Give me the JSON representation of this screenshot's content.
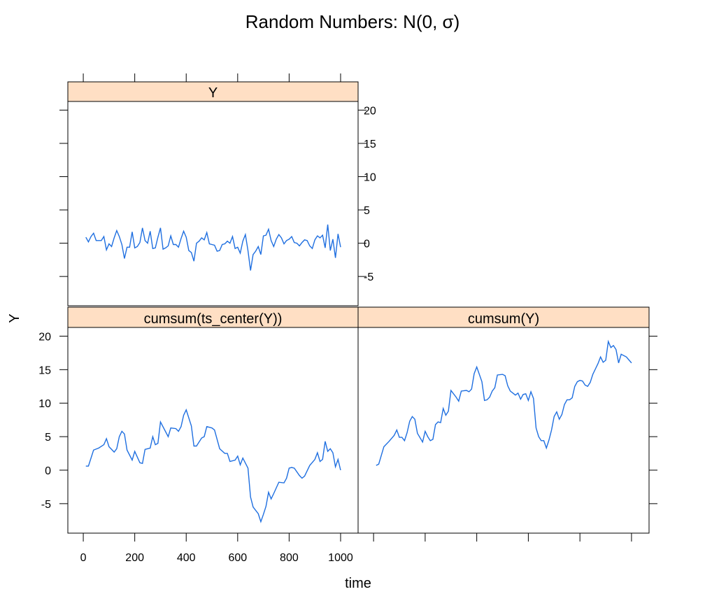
{
  "title": "Random Numbers: N(0, σ)",
  "xlabel": "time",
  "ylabel": "Y",
  "chart_data": [
    {
      "type": "line",
      "strip": "Y",
      "color": "#1f6fe0",
      "strip_color": "#ffdfc4",
      "xlim": [
        -60,
        1068
      ],
      "ylim": [
        -9.4,
        21.3
      ],
      "xticks": [
        0,
        200,
        400,
        600,
        800,
        1000
      ],
      "yticks": [
        -5,
        0,
        5,
        10,
        15,
        20
      ],
      "x": [
        10,
        20,
        30,
        40,
        50,
        60,
        70,
        80,
        90,
        100,
        110,
        120,
        130,
        140,
        150,
        160,
        170,
        180,
        190,
        200,
        210,
        220,
        230,
        240,
        250,
        260,
        270,
        280,
        290,
        300,
        310,
        320,
        330,
        340,
        350,
        360,
        370,
        380,
        390,
        400,
        410,
        420,
        430,
        440,
        450,
        460,
        470,
        480,
        490,
        500,
        510,
        520,
        530,
        540,
        550,
        560,
        570,
        580,
        590,
        600,
        610,
        620,
        630,
        640,
        650,
        660,
        670,
        680,
        690,
        700,
        710,
        720,
        730,
        740,
        750,
        760,
        770,
        780,
        790,
        800,
        810,
        820,
        830,
        840,
        850,
        860,
        870,
        880,
        890,
        900,
        910,
        920,
        930,
        940,
        950,
        960,
        970,
        980,
        990,
        1000
      ],
      "values": [
        0.9,
        0.2,
        1,
        1.5,
        0.4,
        0.4,
        0.4,
        1,
        -1,
        -0.1,
        -0.5,
        0.8,
        1.9,
        1,
        -0.2,
        -2.3,
        -0.6,
        -0.6,
        1.7,
        -0.7,
        -0.5,
        0.1,
        2.3,
        0.4,
        0,
        1.8,
        -0.8,
        -0.7,
        0.9,
        2.3,
        -0.9,
        -0.7,
        -0.4,
        1.1,
        -0.2,
        -0.2,
        -0.6,
        0.7,
        1.8,
        0.9,
        -1.1,
        -1.4,
        -2.7,
        0,
        0.3,
        0.8,
        0.5,
        1.6,
        -0.1,
        -0.2,
        -0.3,
        -1.2,
        -1.1,
        -0.2,
        -0.1,
        0.3,
        0,
        1,
        -0.8,
        -0.6,
        -1.5,
        0.3,
        1.3,
        -1.1,
        -4.1,
        -1.7,
        -1.2,
        -0.5,
        -1.7,
        1.1,
        1.2,
        2.1,
        0.4,
        -0.5,
        0.6,
        1.3,
        0.8,
        -0.1,
        0.4,
        0.6,
        1,
        0.1,
        0,
        -0.4,
        0.1,
        0.5,
        0.4,
        -0.4,
        -0.8,
        0.5,
        1.1,
        0.8,
        1.2,
        -0.7,
        2.8,
        -1.1,
        0.6,
        -2.2,
        1.4,
        -0.6
      ]
    },
    {
      "type": "line",
      "strip": "cumsum(ts_center(Y))",
      "color": "#1f6fe0",
      "strip_color": "#ffdfc4",
      "xlim": [
        -60,
        1068
      ],
      "ylim": [
        -9.4,
        21.3
      ],
      "xticks": [
        0,
        200,
        400,
        600,
        800,
        1000
      ],
      "yticks": [
        -5,
        0,
        5,
        10,
        15,
        20
      ],
      "x": [
        10,
        20,
        40,
        60,
        80,
        90,
        100,
        120,
        130,
        140,
        150,
        160,
        170,
        190,
        200,
        220,
        230,
        240,
        260,
        270,
        280,
        290,
        300,
        330,
        340,
        360,
        370,
        380,
        390,
        400,
        420,
        430,
        440,
        460,
        470,
        480,
        500,
        510,
        530,
        550,
        560,
        570,
        590,
        600,
        610,
        620,
        640,
        650,
        660,
        680,
        690,
        700,
        710,
        720,
        730,
        740,
        760,
        780,
        790,
        800,
        810,
        820,
        840,
        850,
        860,
        880,
        900,
        910,
        920,
        930,
        940,
        950,
        960,
        970,
        980,
        990,
        1000
      ],
      "values": [
        0.6,
        0.6,
        3,
        3.3,
        3.8,
        4.7,
        3.5,
        2.7,
        3.2,
        5,
        5.8,
        5.4,
        3,
        1.5,
        2.8,
        1.1,
        1,
        3.1,
        3.3,
        5,
        3.8,
        4,
        7.2,
        5,
        6.3,
        6.2,
        5.8,
        6.5,
        8.2,
        9,
        6.6,
        3.6,
        3.6,
        4.8,
        5,
        6.5,
        6.3,
        6,
        3.2,
        2.5,
        2.5,
        1.3,
        1.5,
        2.1,
        0.8,
        1.8,
        0.3,
        -4,
        -5.5,
        -6.5,
        -7.7,
        -6.6,
        -5.4,
        -3.3,
        -4.3,
        -3.5,
        -1.8,
        -1.9,
        -1.2,
        0.3,
        0.4,
        0.3,
        -0.8,
        -1.2,
        -0.9,
        0.7,
        1.6,
        2.6,
        1.3,
        1.6,
        4.3,
        2.8,
        3.2,
        2.6,
        0.5,
        1.6,
        0
      ]
    },
    {
      "type": "line",
      "strip": "cumsum(Y)",
      "color": "#1f6fe0",
      "strip_color": "#ffdfc4",
      "xlim": [
        -60,
        1068
      ],
      "ylim": [
        -9.4,
        21.3
      ],
      "xticks": [
        0,
        200,
        400,
        600,
        800,
        1000
      ],
      "yticks": [
        -5,
        0,
        5,
        10,
        15,
        20
      ],
      "x": [
        10,
        20,
        40,
        60,
        80,
        90,
        100,
        110,
        120,
        130,
        140,
        150,
        160,
        170,
        190,
        200,
        210,
        220,
        230,
        240,
        250,
        260,
        270,
        280,
        290,
        300,
        320,
        330,
        340,
        360,
        370,
        380,
        390,
        400,
        410,
        420,
        430,
        440,
        450,
        460,
        470,
        480,
        500,
        510,
        520,
        530,
        540,
        550,
        560,
        570,
        580,
        590,
        600,
        610,
        620,
        630,
        640,
        650,
        660,
        670,
        680,
        690,
        700,
        710,
        720,
        730,
        740,
        750,
        760,
        770,
        780,
        790,
        800,
        810,
        820,
        830,
        840,
        850,
        860,
        870,
        880,
        890,
        900,
        910,
        920,
        930,
        940,
        950,
        960,
        980,
        1000
      ],
      "values": [
        0.7,
        0.9,
        3.5,
        4.3,
        5.2,
        6,
        4.9,
        4.9,
        4.4,
        5.6,
        7.3,
        8,
        7.6,
        5.5,
        4.2,
        5.8,
        5,
        4.4,
        4.6,
        6.8,
        7.2,
        7.1,
        9.2,
        8.2,
        8.8,
        11.9,
        10.9,
        10.3,
        11.8,
        11.9,
        11.7,
        12.1,
        14.4,
        15.4,
        14.3,
        13.2,
        10.4,
        10.5,
        10.9,
        11.8,
        12.3,
        14.2,
        14.3,
        14.1,
        12.6,
        11.8,
        11.5,
        11.2,
        11.5,
        10.6,
        11.3,
        11.4,
        10.4,
        11.7,
        10.7,
        6.3,
        5,
        4.4,
        4.4,
        3.3,
        4.5,
        6,
        8,
        8.7,
        7.6,
        8.3,
        9.8,
        10.5,
        10.5,
        10.8,
        12.5,
        13.2,
        13.4,
        13.3,
        12.7,
        12.5,
        13.1,
        14.3,
        15.1,
        15.9,
        16.9,
        16.1,
        16.4,
        19.2,
        18.3,
        18.6,
        18,
        16,
        17.3,
        16.9,
        16
      ]
    }
  ]
}
